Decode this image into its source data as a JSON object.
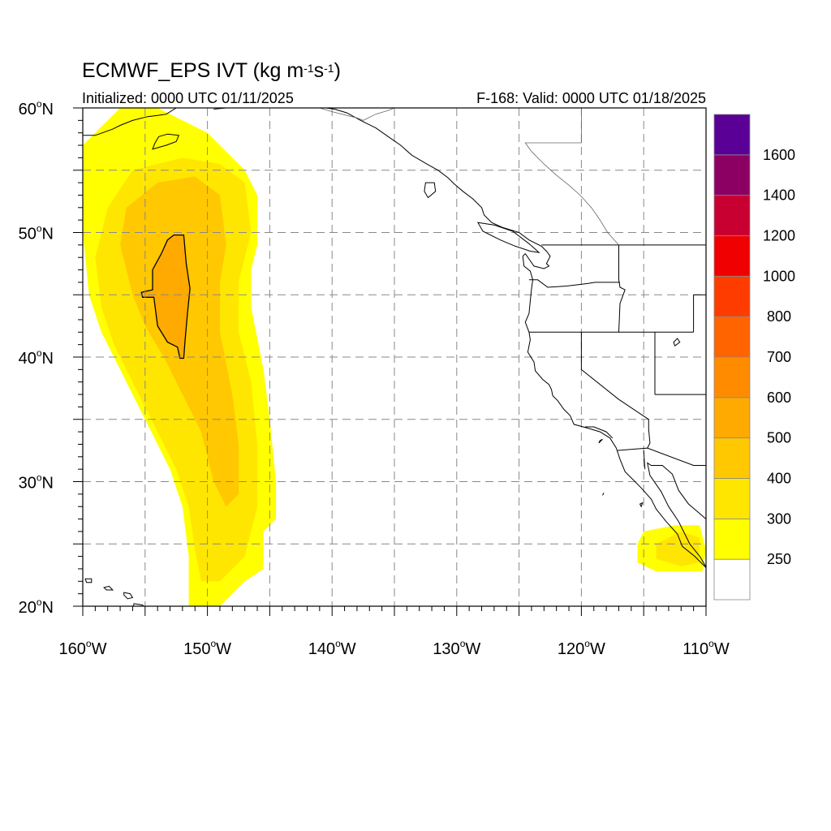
{
  "title": {
    "model": "ECMWF_EPS IVT (kg m",
    "exp1": "-1",
    "mid": "s",
    "exp2": "-1",
    "end": ")"
  },
  "initialized": "Initialized: 0000 UTC 01/11/2025",
  "valid": "F-168: Valid: 0000 UTC 01/18/2025",
  "map": {
    "projection": "cylindrical",
    "lon_range": [
      -160,
      -110
    ],
    "lat_range": [
      20,
      60
    ],
    "grid": true,
    "lat_labels": [
      {
        "lat": 60,
        "deg": "60",
        "hemi": "N"
      },
      {
        "lat": 50,
        "deg": "50",
        "hemi": "N"
      },
      {
        "lat": 40,
        "deg": "40",
        "hemi": "N"
      },
      {
        "lat": 30,
        "deg": "30",
        "hemi": "N"
      },
      {
        "lat": 20,
        "deg": "20",
        "hemi": "N"
      }
    ],
    "lon_labels": [
      {
        "lon": -160,
        "deg": "160",
        "hemi": "W"
      },
      {
        "lon": -150,
        "deg": "150",
        "hemi": "W"
      },
      {
        "lon": -140,
        "deg": "140",
        "hemi": "W"
      },
      {
        "lon": -130,
        "deg": "130",
        "hemi": "W"
      },
      {
        "lon": -120,
        "deg": "120",
        "hemi": "W"
      },
      {
        "lon": -110,
        "deg": "110",
        "hemi": "W"
      }
    ]
  },
  "colorbar": {
    "bins": [
      {
        "label": "",
        "color": "#ffffff"
      },
      {
        "label": "250",
        "color": "#ffff00"
      },
      {
        "label": "300",
        "color": "#ffe600"
      },
      {
        "label": "400",
        "color": "#ffc800"
      },
      {
        "label": "500",
        "color": "#ffaa00"
      },
      {
        "label": "600",
        "color": "#ff8c00"
      },
      {
        "label": "700",
        "color": "#ff6400"
      },
      {
        "label": "800",
        "color": "#ff3c00"
      },
      {
        "label": "1000",
        "color": "#f00000"
      },
      {
        "label": "1200",
        "color": "#c80032"
      },
      {
        "label": "1400",
        "color": "#8c0064"
      },
      {
        "label": "1600",
        "color": "#5a0096"
      }
    ]
  },
  "ivt_regions": [
    {
      "level": 250,
      "color": "#ffff00",
      "outline": [
        [
          -157,
          60
        ],
        [
          -154,
          60
        ],
        [
          -150,
          58
        ],
        [
          -148,
          56
        ],
        [
          -147,
          55
        ],
        [
          -146,
          53
        ],
        [
          -146,
          49
        ],
        [
          -146.5,
          47
        ],
        [
          -146.5,
          44
        ],
        [
          -145.5,
          39
        ],
        [
          -145,
          35
        ],
        [
          -144.5,
          30
        ],
        [
          -144.5,
          27
        ],
        [
          -145.5,
          26
        ],
        [
          -145.5,
          23
        ],
        [
          -147,
          22
        ],
        [
          -149,
          20
        ],
        [
          -151.5,
          20
        ],
        [
          -151.5,
          24
        ],
        [
          -152,
          28
        ],
        [
          -153,
          31
        ],
        [
          -154.5,
          34
        ],
        [
          -156,
          37
        ],
        [
          -157.5,
          40
        ],
        [
          -158.5,
          42
        ],
        [
          -159.5,
          45
        ],
        [
          -160,
          50
        ],
        [
          -160,
          57
        ]
      ]
    },
    {
      "level": 250,
      "color": "#ffff00",
      "outline": [
        [
          -115,
          26
        ],
        [
          -112.5,
          26.5
        ],
        [
          -110.5,
          26.5
        ],
        [
          -110,
          24.5
        ],
        [
          -110.3,
          22.8
        ],
        [
          -114,
          22.8
        ],
        [
          -115.5,
          23.5
        ],
        [
          -115.5,
          25
        ]
      ]
    },
    {
      "level": 300,
      "color": "#ffe600",
      "outline": [
        [
          -156,
          55
        ],
        [
          -152,
          56
        ],
        [
          -149,
          55.5
        ],
        [
          -147,
          54
        ],
        [
          -146.5,
          50
        ],
        [
          -147.5,
          46
        ],
        [
          -147.5,
          42
        ],
        [
          -146.5,
          38
        ],
        [
          -146,
          33
        ],
        [
          -146,
          28
        ],
        [
          -147,
          24
        ],
        [
          -149,
          22
        ],
        [
          -150.5,
          22
        ],
        [
          -151,
          24.5
        ],
        [
          -151.5,
          28
        ],
        [
          -152.5,
          31
        ],
        [
          -154,
          34
        ],
        [
          -156,
          38
        ],
        [
          -157.5,
          41
        ],
        [
          -158.5,
          44
        ],
        [
          -159,
          48
        ],
        [
          -158,
          52
        ]
      ]
    },
    {
      "level": 300,
      "color": "#ffe600",
      "outline": [
        [
          -114,
          25
        ],
        [
          -112,
          26
        ],
        [
          -110.5,
          25.5
        ],
        [
          -110.6,
          23.5
        ],
        [
          -112,
          23.2
        ],
        [
          -114,
          23.8
        ]
      ]
    },
    {
      "level": 400,
      "color": "#ffc800",
      "outline": [
        [
          -154,
          54
        ],
        [
          -151,
          54.5
        ],
        [
          -149,
          53
        ],
        [
          -148.5,
          49
        ],
        [
          -149,
          46
        ],
        [
          -149,
          42
        ],
        [
          -148,
          37
        ],
        [
          -147.5,
          33
        ],
        [
          -147.5,
          29
        ],
        [
          -148.5,
          28
        ],
        [
          -149.5,
          30
        ],
        [
          -150.5,
          34
        ],
        [
          -152,
          37
        ],
        [
          -153.5,
          40
        ],
        [
          -155,
          42.5
        ],
        [
          -156,
          45
        ],
        [
          -157,
          49
        ],
        [
          -156.5,
          52
        ]
      ]
    },
    {
      "level": 500,
      "color": "#ffaa00",
      "outline": [
        [
          -152.7,
          49.8
        ],
        [
          -151.9,
          49.8
        ],
        [
          -151.7,
          47.5
        ],
        [
          -151.4,
          45.5
        ],
        [
          -151.6,
          43.5
        ],
        [
          -151.8,
          41.3
        ],
        [
          -151.9,
          39.9
        ],
        [
          -152.2,
          39.9
        ],
        [
          -152.4,
          40.8
        ],
        [
          -153.2,
          41.2
        ],
        [
          -154,
          42.5
        ],
        [
          -154.3,
          44.8
        ],
        [
          -155.2,
          44.8
        ],
        [
          -155.3,
          45.2
        ],
        [
          -154.4,
          45.4
        ],
        [
          -154.4,
          47
        ],
        [
          -153.7,
          48.3
        ],
        [
          -153.2,
          49.4
        ]
      ]
    }
  ],
  "coastlines": [
    [
      [
        -160,
        57.8
      ],
      [
        -159,
        57.8
      ],
      [
        -157.6,
        58.3
      ],
      [
        -157,
        58.6
      ],
      [
        -156,
        59
      ],
      [
        -154.8,
        59.3
      ],
      [
        -154,
        59.4
      ],
      [
        -153.3,
        59.5
      ],
      [
        -152.5,
        60
      ]
    ],
    [
      [
        -149.5,
        59.9
      ],
      [
        -148.5,
        60
      ],
      [
        -147,
        60
      ],
      [
        -146,
        60.3
      ]
    ],
    [
      [
        -140.5,
        60
      ],
      [
        -139.8,
        59.9
      ],
      [
        -138.8,
        59.6
      ],
      [
        -137.7,
        59
      ],
      [
        -136.5,
        58.4
      ],
      [
        -135.5,
        57.7
      ],
      [
        -134.5,
        57
      ],
      [
        -133.6,
        56.2
      ],
      [
        -132.4,
        55.5
      ],
      [
        -131.5,
        55
      ],
      [
        -130.7,
        54.4
      ],
      [
        -130.2,
        53.9
      ],
      [
        -129.5,
        53.3
      ],
      [
        -128.7,
        52.7
      ],
      [
        -128,
        52
      ],
      [
        -127.8,
        51.4
      ],
      [
        -127.2,
        50.8
      ],
      [
        -126.3,
        50.4
      ],
      [
        -125,
        50
      ],
      [
        -124.2,
        49.4
      ],
      [
        -123.2,
        48.9
      ],
      [
        -122.8,
        48.5
      ],
      [
        -122.5,
        48.1
      ],
      [
        -122.8,
        47.5
      ],
      [
        -122.6,
        47.3
      ],
      [
        -123,
        47.1
      ],
      [
        -123.8,
        47.3
      ],
      [
        -124.5,
        48.3
      ],
      [
        -124.7,
        48.1
      ],
      [
        -124.6,
        47.3
      ],
      [
        -124.1,
        46.9
      ],
      [
        -123.9,
        46.2
      ],
      [
        -124,
        45.5
      ],
      [
        -124.1,
        44.5
      ],
      [
        -124.2,
        43.5
      ],
      [
        -124.5,
        42.8
      ],
      [
        -124.2,
        42
      ],
      [
        -124.1,
        41.4
      ],
      [
        -124.3,
        40.4
      ],
      [
        -123.8,
        39.6
      ],
      [
        -123.7,
        38.9
      ],
      [
        -123.1,
        38.2
      ],
      [
        -122.6,
        37.8
      ],
      [
        -122.4,
        37.4
      ],
      [
        -122.3,
        36.9
      ],
      [
        -121.9,
        36.5
      ],
      [
        -121.4,
        35.8
      ],
      [
        -120.9,
        35.3
      ],
      [
        -120.6,
        34.6
      ],
      [
        -119.5,
        34.3
      ],
      [
        -118.5,
        34
      ],
      [
        -117.7,
        33.5
      ],
      [
        -117.2,
        32.7
      ],
      [
        -116.9,
        31.8
      ],
      [
        -116.5,
        30.8
      ],
      [
        -115.9,
        30.2
      ],
      [
        -115.2,
        29.5
      ],
      [
        -114.4,
        28.6
      ],
      [
        -114,
        27.8
      ],
      [
        -113.2,
        26.8
      ],
      [
        -112.3,
        25.8
      ],
      [
        -111.9,
        24.8
      ],
      [
        -110.9,
        24
      ],
      [
        -109.9,
        23
      ]
    ],
    [
      [
        -109.9,
        23
      ],
      [
        -110.5,
        24
      ],
      [
        -111.3,
        25
      ],
      [
        -112.2,
        26.8
      ],
      [
        -113,
        28
      ],
      [
        -113.6,
        29.2
      ],
      [
        -114.5,
        30.5
      ],
      [
        -114.7,
        31.5
      ],
      [
        -114.4,
        31.3
      ],
      [
        -113.5,
        31.3
      ],
      [
        -112.7,
        30.6
      ],
      [
        -112.2,
        29.3
      ],
      [
        -111.4,
        28.2
      ],
      [
        -110.7,
        27.6
      ],
      [
        -110,
        27
      ],
      [
        -109.4,
        26
      ],
      [
        -108.8,
        25.3
      ],
      [
        -108,
        25
      ]
    ],
    [
      [
        -117.5,
        33.5
      ],
      [
        -118,
        34
      ],
      [
        -119,
        34.4
      ],
      [
        -119.7,
        34.4
      ]
    ]
  ],
  "borders": [
    [
      [
        -141,
        60
      ],
      [
        -141,
        60
      ]
    ],
    [
      [
        -123.2,
        49
      ],
      [
        -110,
        49
      ]
    ],
    [
      [
        -117,
        49
      ],
      [
        -117,
        46.2
      ],
      [
        -116.9,
        45.6
      ],
      [
        -116.5,
        45.4
      ],
      [
        -116.9,
        44.3
      ],
      [
        -117,
        42
      ]
    ],
    [
      [
        -124.2,
        46.2
      ],
      [
        -123.5,
        46.2
      ],
      [
        -122.7,
        45.6
      ],
      [
        -121.2,
        45.7
      ],
      [
        -119.5,
        45.9
      ],
      [
        -118.9,
        46
      ],
      [
        -116.9,
        46
      ]
    ],
    [
      [
        -124.2,
        42
      ],
      [
        -111,
        42
      ]
    ],
    [
      [
        -120,
        42
      ],
      [
        -120,
        39
      ],
      [
        -117,
        36.6
      ],
      [
        -114.6,
        35
      ],
      [
        -114.6,
        34.2
      ],
      [
        -114.5,
        33.1
      ],
      [
        -114.7,
        32.7
      ]
    ],
    [
      [
        -117.1,
        32.5
      ],
      [
        -114.7,
        32.7
      ],
      [
        -111,
        31.3
      ],
      [
        -108.2,
        31.3
      ]
    ],
    [
      [
        -114.1,
        42
      ],
      [
        -114.1,
        37
      ]
    ],
    [
      [
        -114.1,
        37
      ],
      [
        -110,
        37
      ]
    ],
    [
      [
        -111,
        45
      ],
      [
        -110,
        45
      ]
    ],
    [
      [
        -111,
        45
      ],
      [
        -111,
        42
      ]
    ],
    [
      [
        -115,
        32.5
      ],
      [
        -114.9,
        31
      ]
    ]
  ],
  "inland_lines": [
    [
      [
        -117,
        49
      ],
      [
        -117.9,
        50
      ],
      [
        -118.5,
        51
      ],
      [
        -119.2,
        52
      ],
      [
        -120.1,
        53
      ],
      [
        -121,
        53.8
      ],
      [
        -122,
        54.6
      ],
      [
        -123,
        55.5
      ],
      [
        -124,
        56.5
      ],
      [
        -124.5,
        57.2
      ],
      [
        -120,
        57.2
      ],
      [
        -120,
        60
      ]
    ],
    [
      [
        -141,
        60
      ],
      [
        -140,
        59.7
      ],
      [
        -138,
        59.2
      ],
      [
        -137.5,
        59
      ],
      [
        -136.5,
        59.5
      ],
      [
        -135.5,
        59.8
      ],
      [
        -135,
        60
      ]
    ]
  ],
  "lakes": [
    [
      [
        -112.6,
        41.2
      ],
      [
        -112.3,
        41.5
      ],
      [
        -112.1,
        41.2
      ],
      [
        -112.5,
        40.9
      ]
    ]
  ],
  "islands": [
    [
      [
        -156.7,
        21.1
      ],
      [
        -156.2,
        21
      ],
      [
        -156,
        20.7
      ],
      [
        -156.4,
        20.6
      ],
      [
        -156.7,
        20.9
      ]
    ],
    [
      [
        -155.9,
        20.2
      ],
      [
        -155.2,
        20.1
      ],
      [
        -154.8,
        19.6
      ],
      [
        -155.6,
        19.1
      ],
      [
        -156,
        19.6
      ]
    ],
    [
      [
        -157.9,
        21.6
      ],
      [
        -157.6,
        21.3
      ],
      [
        -158.1,
        21.3
      ],
      [
        -158.3,
        21.5
      ]
    ],
    [
      [
        -159.8,
        22.2
      ],
      [
        -159.3,
        22.2
      ],
      [
        -159.3,
        21.9
      ],
      [
        -159.7,
        21.9
      ]
    ],
    [
      [
        -153.9,
        57.7
      ],
      [
        -153.2,
        57.9
      ],
      [
        -152.3,
        57.8
      ],
      [
        -152.5,
        57.3
      ],
      [
        -153.3,
        57
      ],
      [
        -154.4,
        56.7
      ],
      [
        -154.2,
        57.2
      ]
    ],
    [
      [
        -118.6,
        33.1
      ],
      [
        -118.3,
        33.4
      ],
      [
        -118.5,
        33.3
      ]
    ],
    [
      [
        -132.5,
        54
      ],
      [
        -131.8,
        54
      ],
      [
        -131.7,
        53.3
      ],
      [
        -132.3,
        52.8
      ],
      [
        -132.6,
        53.3
      ]
    ],
    [
      [
        -128.3,
        50.8
      ],
      [
        -127,
        50.6
      ],
      [
        -125.5,
        50.1
      ],
      [
        -124.2,
        49.1
      ],
      [
        -123.4,
        48.4
      ],
      [
        -124.1,
        48.5
      ],
      [
        -125.3,
        48.9
      ],
      [
        -126.5,
        49.4
      ],
      [
        -127.9,
        50.1
      ]
    ],
    [
      [
        -115.3,
        28.2
      ],
      [
        -115.1,
        28.3
      ],
      [
        -115.2,
        28
      ]
    ],
    [
      [
        -118.2,
        29.1
      ],
      [
        -118.3,
        28.9
      ]
    ]
  ]
}
